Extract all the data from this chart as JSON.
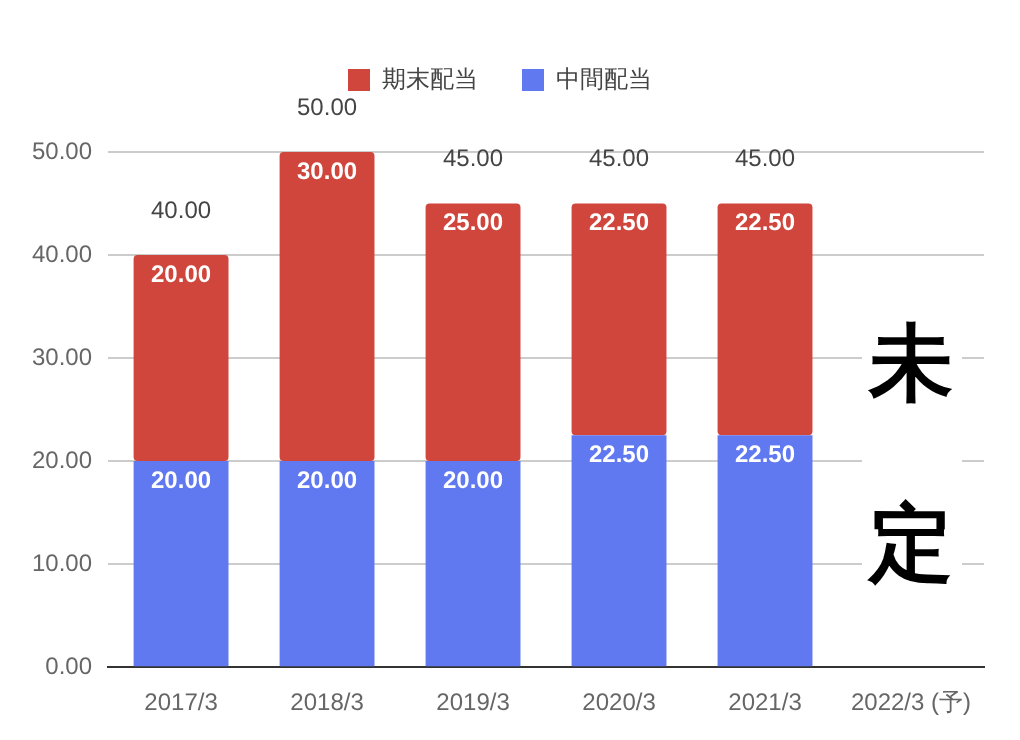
{
  "chart_data": {
    "type": "bar",
    "stacked": true,
    "categories": [
      "2017/3",
      "2018/3",
      "2019/3",
      "2020/3",
      "2021/3",
      "2022/3 (予)"
    ],
    "series": [
      {
        "name": "中間配当",
        "color": "#6078f0",
        "values": [
          20,
          20,
          20,
          22.5,
          22.5,
          null
        ],
        "value_labels": [
          "20.00",
          "20.00",
          "20.00",
          "22.50",
          "22.50",
          null
        ]
      },
      {
        "name": "期末配当",
        "color": "#d0463c",
        "values": [
          20,
          30,
          25,
          22.5,
          22.5,
          null
        ],
        "value_labels": [
          "20.00",
          "30.00",
          "25.00",
          "22.50",
          "22.50",
          null
        ]
      }
    ],
    "totals": [
      "40.00",
      "50.00",
      "45.00",
      "45.00",
      "45.00",
      null
    ],
    "annotations": [
      "未定"
    ],
    "ylim": [
      0,
      50
    ],
    "yticks": [
      {
        "value": 0,
        "label": "0.00"
      },
      {
        "value": 10,
        "label": "10.00"
      },
      {
        "value": 20,
        "label": "20.00"
      },
      {
        "value": 30,
        "label": "30.00"
      },
      {
        "value": 40,
        "label": "40.00"
      },
      {
        "value": 50,
        "label": "50.00"
      }
    ],
    "grid": "y",
    "legend": "top"
  }
}
